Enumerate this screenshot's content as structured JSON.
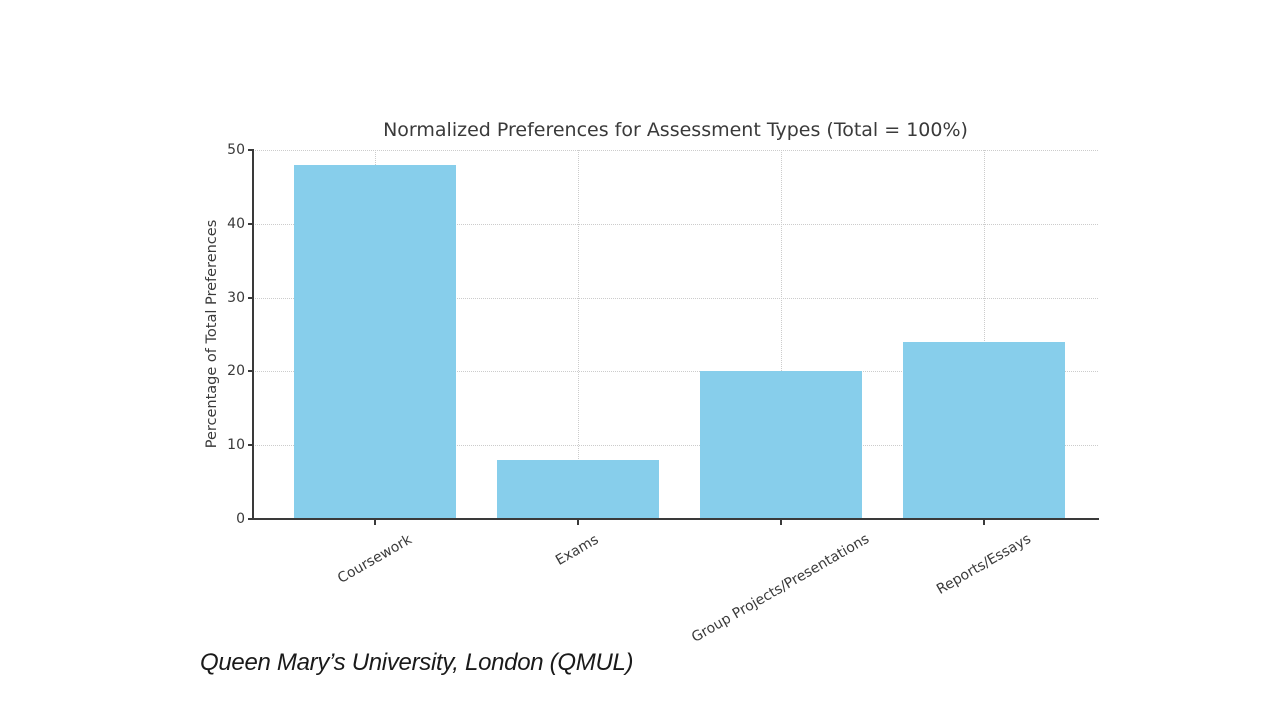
{
  "chart_data": {
    "type": "bar",
    "title": "Normalized Preferences for Assessment Types (Total = 100%)",
    "categories": [
      "Coursework",
      "Exams",
      "Group Projects/Presentations",
      "Reports/Essays"
    ],
    "values": [
      48,
      8,
      20,
      24
    ],
    "xlabel": "",
    "ylabel": "Percentage of Total Preferences",
    "ylim": [
      0,
      50
    ],
    "yticks": [
      0,
      10,
      20,
      30,
      40,
      50
    ],
    "grid": true,
    "grid_style": "dotted",
    "grid_color": "#cccccc",
    "bar_color": "#87CEEB",
    "spine_color": "#3a3a3a",
    "text_color": "#3a3a3a",
    "legend": "none",
    "background": "#ffffff"
  },
  "caption": {
    "text": "Queen Mary’s University, London (QMUL)"
  }
}
